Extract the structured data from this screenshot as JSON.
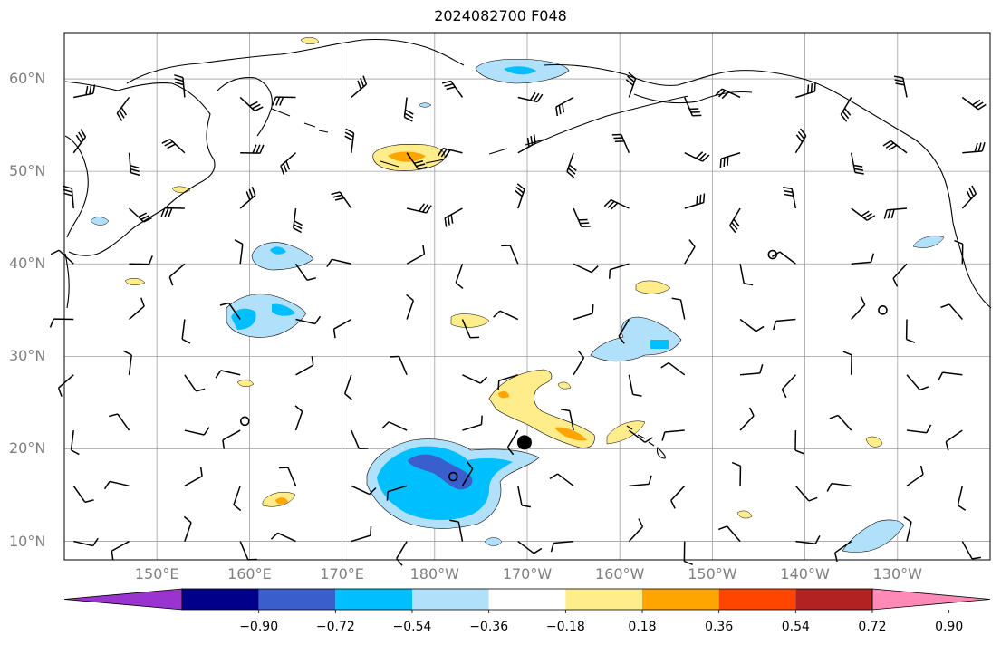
{
  "title": "2024082700 F048",
  "map": {
    "extent_lon_east": [
      140,
      240
    ],
    "extent_lat": [
      8,
      65
    ],
    "lat_ticks": [
      {
        "value": 10,
        "label": "10°N"
      },
      {
        "value": 20,
        "label": "20°N"
      },
      {
        "value": 30,
        "label": "30°N"
      },
      {
        "value": 40,
        "label": "40°N"
      },
      {
        "value": 50,
        "label": "50°N"
      },
      {
        "value": 60,
        "label": "60°N"
      }
    ],
    "lon_ticks": [
      {
        "value": 150,
        "label": "150°E"
      },
      {
        "value": 160,
        "label": "160°E"
      },
      {
        "value": 170,
        "label": "170°E"
      },
      {
        "value": 180,
        "label": "180°W"
      },
      {
        "value": 190,
        "label": "170°W"
      },
      {
        "value": 200,
        "label": "160°W"
      },
      {
        "value": 210,
        "label": "150°W"
      },
      {
        "value": 220,
        "label": "140°W"
      },
      {
        "value": 230,
        "label": "130°W"
      }
    ],
    "gridlines": true,
    "storm_center": {
      "lon": 189.7,
      "lat": 20.7
    },
    "calm_markers": [
      {
        "lon": 159.5,
        "lat": 23
      },
      {
        "lon": 216.5,
        "lat": 41
      },
      {
        "lon": 228.4,
        "lat": 35
      },
      {
        "lon": 182.0,
        "lat": 17
      }
    ]
  },
  "colorbar": {
    "colors": [
      "#9a34d0",
      "#00008b",
      "#3a5fcd",
      "#00bfff",
      "#b0e0fa",
      "#ffffff",
      "#ffec8b",
      "#ffa500",
      "#ff4500",
      "#b22222",
      "#ff8ab8"
    ],
    "ticks": [
      "−0.90",
      "−0.72",
      "−0.54",
      "−0.36",
      "−0.18",
      "0.18",
      "0.36",
      "0.54",
      "0.72",
      "0.90"
    ],
    "extend": "both"
  }
}
